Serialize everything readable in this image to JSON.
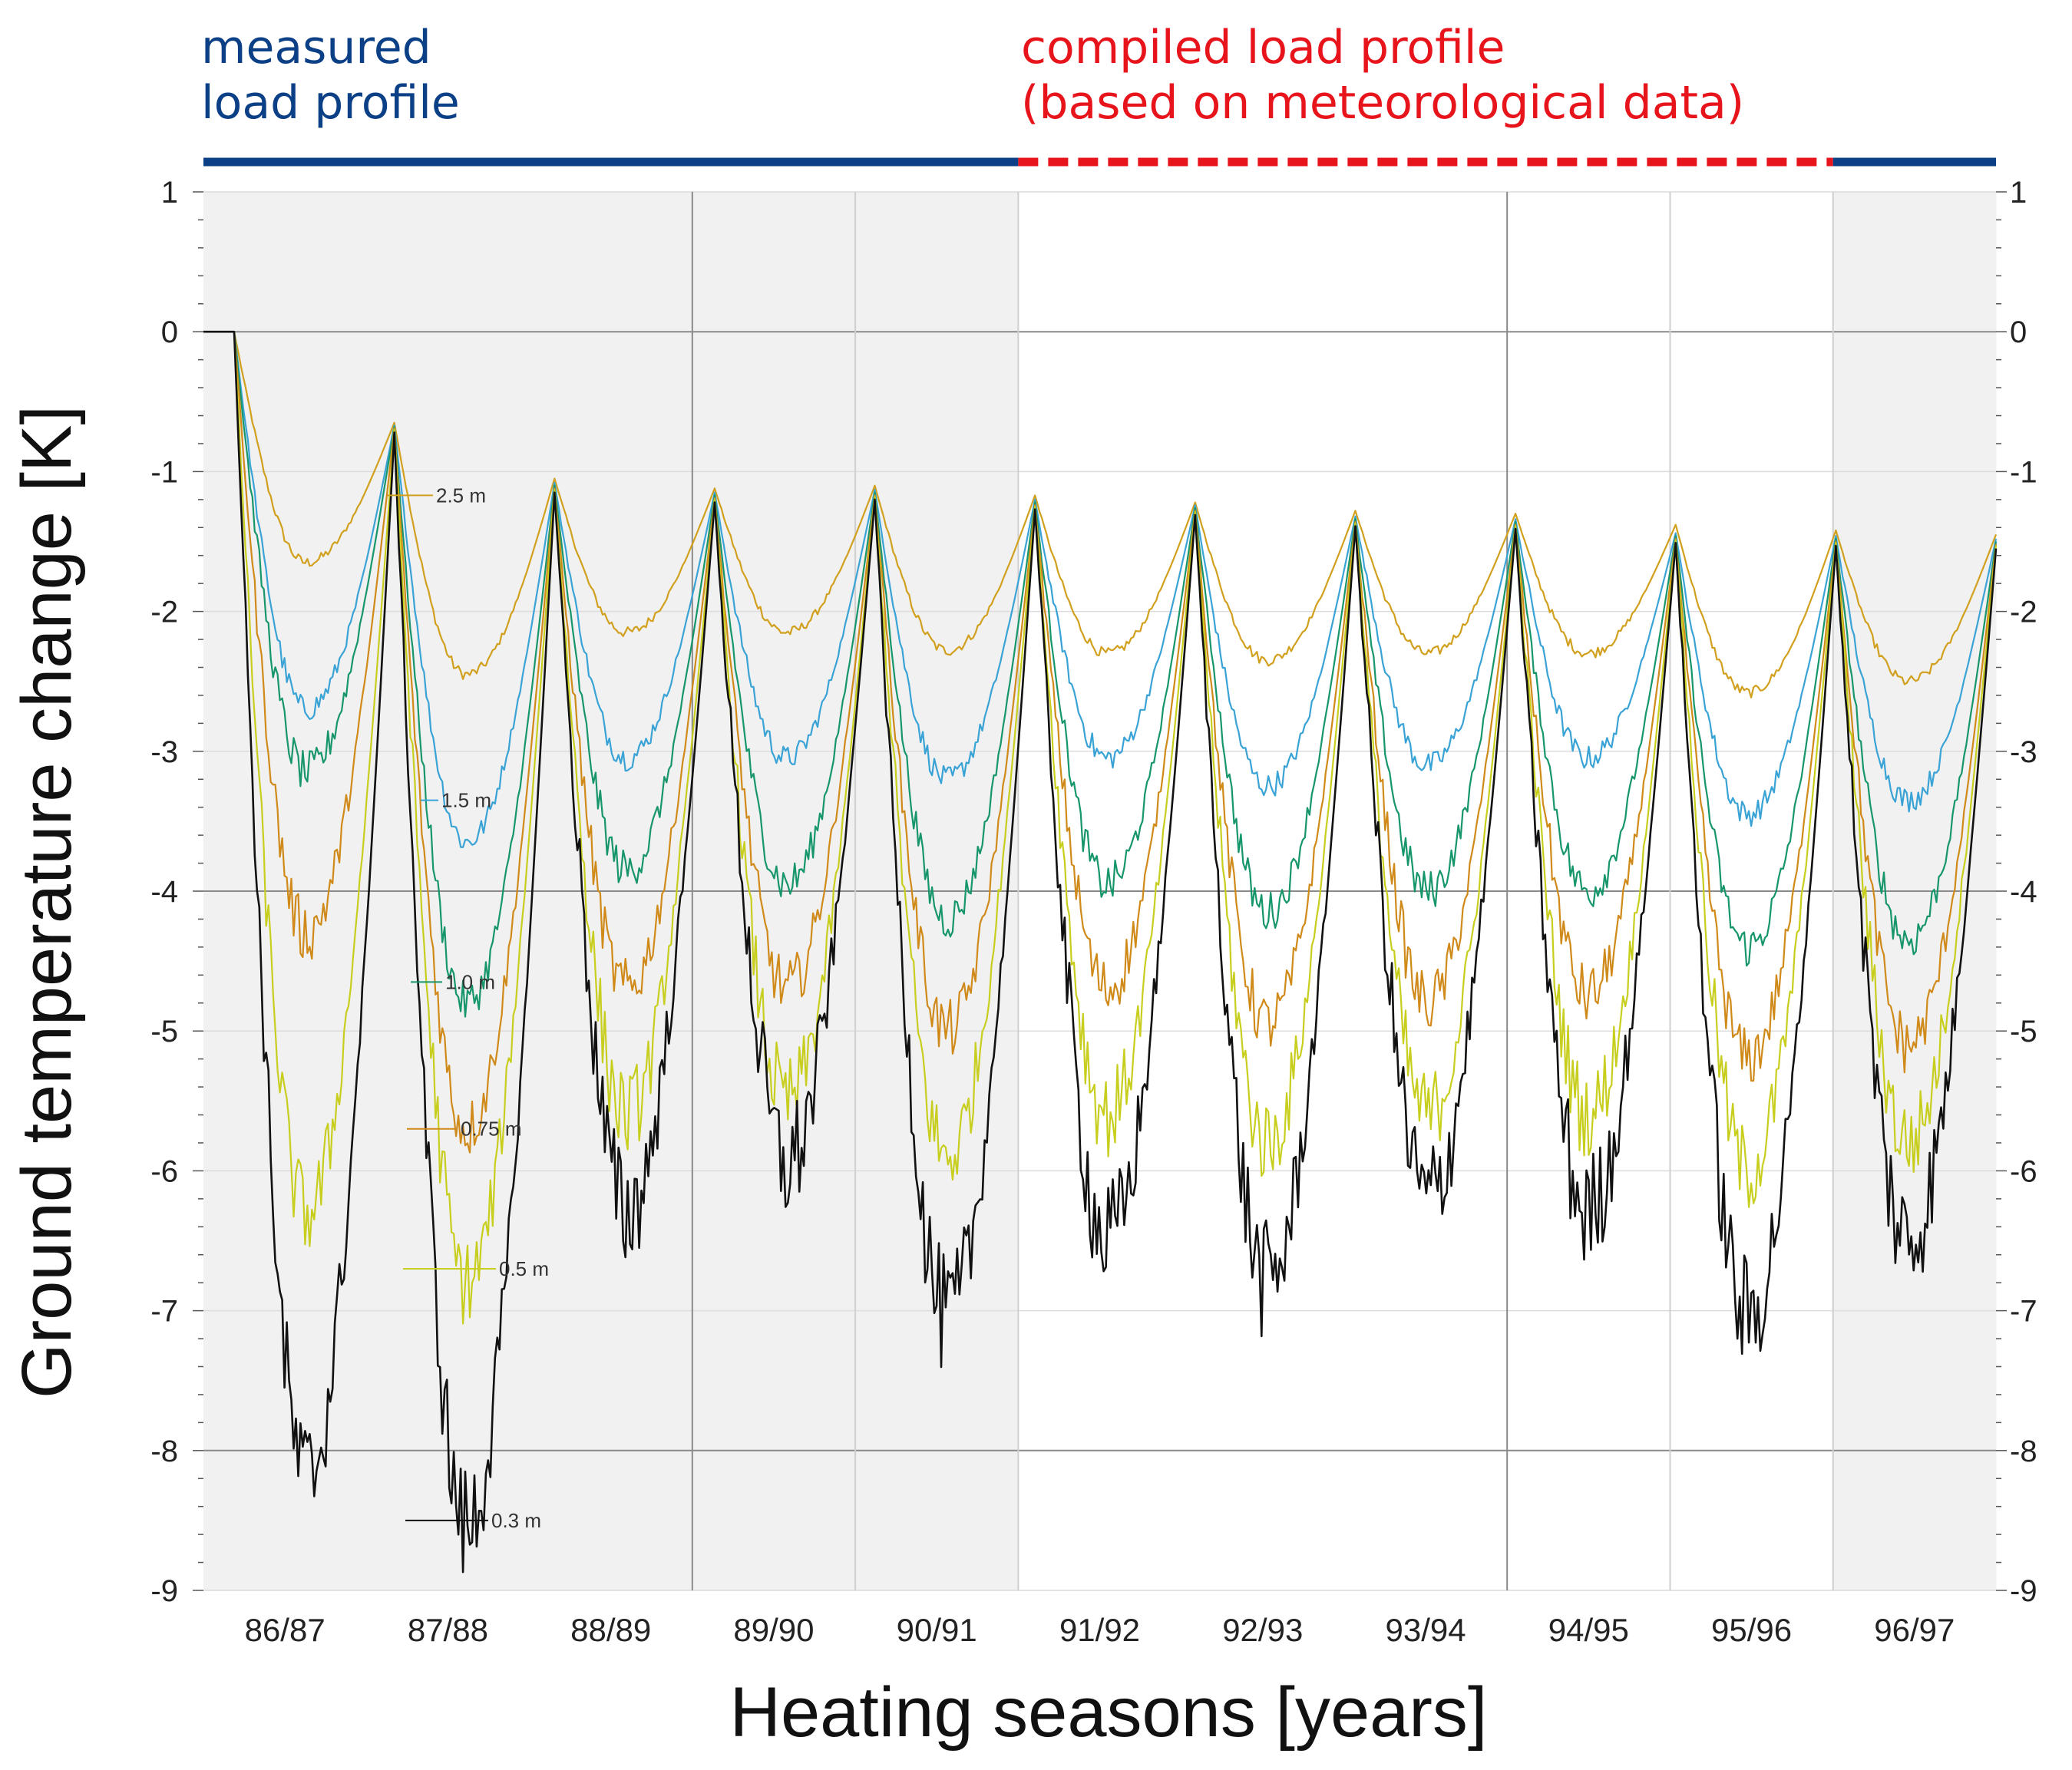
{
  "header": {
    "measured_line1": "measured",
    "measured_line2": "load profile",
    "compiled_line1": "compiled load profile",
    "compiled_line2": "(based on meteorological data)",
    "measured_color": "#0b3f86",
    "compiled_color": "#e8141c"
  },
  "chart_data": {
    "type": "line",
    "title": "",
    "xlabel": "Heating seasons [years]",
    "ylabel": "Ground temperature change [K]",
    "ylim": [
      -9,
      1
    ],
    "yticks": [
      1,
      0,
      -1,
      -2,
      -3,
      -4,
      -5,
      -6,
      -7,
      -8,
      -9
    ],
    "categories": [
      "86/87",
      "87/88",
      "88/89",
      "89/90",
      "90/91",
      "91/92",
      "92/93",
      "93/94",
      "94/95",
      "95/96",
      "96/97"
    ],
    "grid": true,
    "measured_profile_seasons": [
      "86/87",
      "87/88",
      "88/89",
      "89/90",
      "90/91",
      "96/97"
    ],
    "compiled_profile_seasons": [
      "91/92",
      "92/93",
      "93/94",
      "94/95",
      "95/96"
    ],
    "series": [
      {
        "name": "2.5 m",
        "color": "#d1a01e",
        "peaks": [
          0,
          -0.65,
          -1.05,
          -1.12,
          -1.1,
          -1.17,
          -1.22,
          -1.28,
          -1.3,
          -1.38,
          -1.42,
          -1.45
        ],
        "troughs": [
          -1.65,
          -2.45,
          -2.15,
          -2.15,
          -2.28,
          -2.3,
          -2.35,
          -2.3,
          -2.3,
          -2.58,
          -2.5
        ]
      },
      {
        "name": "1.5 m",
        "color": "#3aa3d6",
        "peaks": [
          0,
          -0.67,
          -1.08,
          -1.15,
          -1.13,
          -1.2,
          -1.24,
          -1.32,
          -1.34,
          -1.44,
          -1.46,
          -1.48
        ],
        "troughs": [
          -2.7,
          -3.65,
          -3.05,
          -3.05,
          -3.2,
          -3.05,
          -3.25,
          -3.1,
          -3.05,
          -3.45,
          -3.35
        ]
      },
      {
        "name": "1.0 m",
        "color": "#16966a",
        "peaks": [
          0,
          -0.68,
          -1.1,
          -1.17,
          -1.15,
          -1.22,
          -1.26,
          -1.34,
          -1.36,
          -1.46,
          -1.48,
          -1.5
        ],
        "troughs": [
          -3.15,
          -4.8,
          -3.85,
          -3.95,
          -4.2,
          -3.95,
          -4.15,
          -4.0,
          -4.0,
          -4.4,
          -4.35
        ]
      },
      {
        "name": "0.75 m",
        "color": "#d08a1a",
        "peaks": [
          0,
          -0.69,
          -1.12,
          -1.19,
          -1.17,
          -1.24,
          -1.28,
          -1.36,
          -1.38,
          -1.48,
          -1.5,
          -1.52
        ],
        "troughs": [
          -4.3,
          -5.7,
          -4.7,
          -4.7,
          -5.0,
          -4.7,
          -4.95,
          -4.8,
          -4.75,
          -5.2,
          -5.1
        ]
      },
      {
        "name": "0.5 m",
        "color": "#c8ce1e",
        "peaks": [
          0,
          -0.7,
          -1.13,
          -1.2,
          -1.18,
          -1.25,
          -1.29,
          -1.37,
          -1.39,
          -1.49,
          -1.51,
          -1.53
        ],
        "troughs": [
          -6.3,
          -6.8,
          -5.6,
          -5.5,
          -5.9,
          -5.6,
          -5.8,
          -5.6,
          -5.6,
          -6.0,
          -5.8
        ]
      },
      {
        "name": "0.3 m",
        "color": "#111111",
        "peaks": [
          0,
          -0.72,
          -1.15,
          -1.22,
          -1.2,
          -1.27,
          -1.31,
          -1.39,
          -1.41,
          -1.51,
          -1.53,
          -1.55
        ],
        "troughs": [
          -8.2,
          -8.55,
          -6.3,
          -5.95,
          -7.05,
          -6.5,
          -6.8,
          -6.2,
          -6.3,
          -7.05,
          -6.5
        ]
      }
    ],
    "annotations": [
      "2.5 m",
      "1.5 m",
      "1.0 m",
      "0.75 m",
      "0.5 m",
      "0.3 m"
    ]
  }
}
